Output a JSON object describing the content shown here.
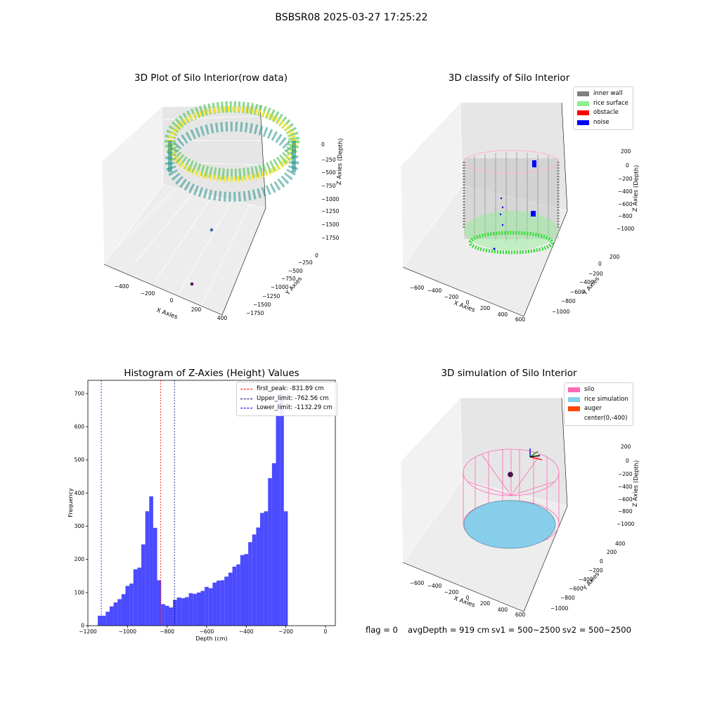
{
  "suptitle": "BSBSR08 2025-03-27 17:25:22",
  "footer": {
    "flag": "flag = 0",
    "avg_depth": "avgDepth = 919 cm",
    "sv1": "sv1 = 500~2500",
    "sv2": "sv2 = 500~2500"
  },
  "colors": {
    "hist_bar": "#4b4bff",
    "first_peak": "#ff0000",
    "upper_limit": "#000080",
    "lower_limit": "#0000ff",
    "inner_wall": "#808080",
    "rice_surface": "#90ee90",
    "obstacle": "#ff0000",
    "noise": "#0000ff",
    "silo": "#ff69b4",
    "rice_simulation": "#87ceeb",
    "auger": "#ff4500"
  },
  "panels": {
    "raw": {
      "title": "3D Plot of Silo Interior(row data)",
      "xlabel": "X Axies",
      "ylabel": "Y Axies",
      "zlabel": "Z Axies (Depth)",
      "xticks": [
        "−400",
        "−200",
        "0",
        "200",
        "400"
      ],
      "yticks": [
        "0",
        "−250",
        "−500",
        "−750",
        "−1000",
        "−1250",
        "−1500",
        "−1750"
      ],
      "zticks": [
        "0",
        "−250",
        "−500",
        "−750",
        "−1000",
        "−1250",
        "−1500",
        "−1750"
      ]
    },
    "classify": {
      "title": "3D classify of Silo Interior",
      "xlabel": "X Axies",
      "ylabel": "Y Axies",
      "zlabel": "Z Axies (Depth)",
      "xticks": [
        "−600",
        "−400",
        "−200",
        "0",
        "200",
        "400",
        "600"
      ],
      "yticks": [
        "200",
        "0",
        "−200",
        "−400",
        "−600",
        "−800",
        "−1000"
      ],
      "zticks": [
        "200",
        "0",
        "−200",
        "−400",
        "−600",
        "−800",
        "−1000"
      ],
      "legend": [
        "inner wall",
        "rice surface",
        "obstacle",
        "noise"
      ]
    },
    "simulation": {
      "title": "3D simulation of Silo Interior",
      "xlabel": "X Axies",
      "ylabel": "Y Axies",
      "zlabel": "Z Axies (Depth)",
      "xticks": [
        "−600",
        "−400",
        "−200",
        "0",
        "200",
        "400",
        "600"
      ],
      "yticks": [
        "400",
        "200",
        "0",
        "−200",
        "−400",
        "−600",
        "−800",
        "−1000"
      ],
      "zticks": [
        "200",
        "0",
        "−200",
        "−400",
        "−600",
        "−800",
        "−1000"
      ],
      "legend": [
        "silo",
        "rice simulation",
        "auger",
        "center(0,-400)"
      ]
    }
  },
  "chart_data": [
    {
      "type": "bar",
      "title": "Histogram of Z-Axies (Height) Values",
      "xlabel": "Depth (cm)",
      "ylabel": "Frequency",
      "xlim": [
        -1200,
        50
      ],
      "ylim": [
        0,
        740
      ],
      "xticks": [
        -1200,
        -1000,
        -800,
        -600,
        -400,
        -200,
        0
      ],
      "xtick_labels": [
        "−1200",
        "−1000",
        "−800",
        "−600",
        "−400",
        "−200",
        "0"
      ],
      "yticks": [
        0,
        100,
        200,
        300,
        400,
        500,
        600,
        700
      ],
      "ytick_labels": [
        "0",
        "100",
        "200",
        "300",
        "400",
        "500",
        "600",
        "700"
      ],
      "bin_start": -1150,
      "bin_width": 20,
      "values": [
        30,
        30,
        42,
        58,
        70,
        80,
        95,
        120,
        127,
        170,
        175,
        245,
        345,
        390,
        295,
        137,
        65,
        60,
        55,
        78,
        85,
        83,
        86,
        98,
        96,
        100,
        105,
        117,
        113,
        130,
        136,
        137,
        148,
        160,
        178,
        185,
        213,
        216,
        252,
        275,
        296,
        340,
        345,
        445,
        490,
        633,
        700,
        345
      ],
      "vlines": [
        {
          "name": "first_peak: -831.89 cm",
          "x": -831.89,
          "color": "#ff0000"
        },
        {
          "name": "Upper_limit: -762.56 cm",
          "x": -762.56,
          "color": "#000080"
        },
        {
          "name": "Lower_limit: -1132.29 cm",
          "x": -1132.29,
          "color": "#0000ff"
        }
      ],
      "legend_position": "upper right"
    }
  ]
}
